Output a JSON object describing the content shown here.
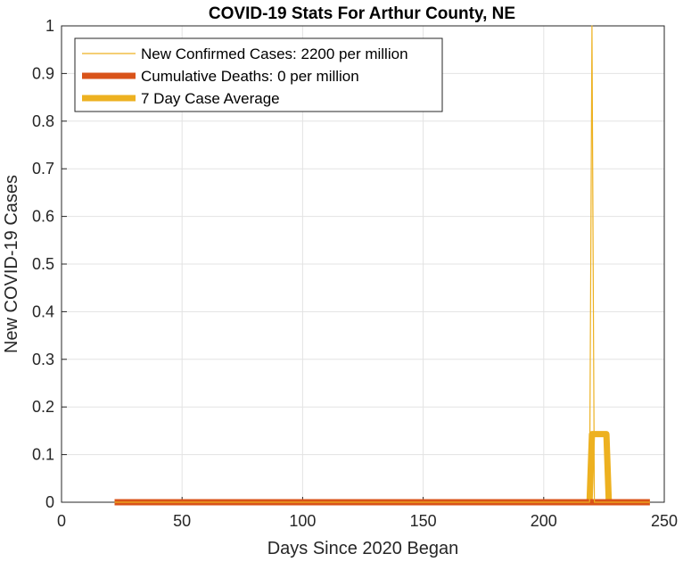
{
  "chart_data": {
    "type": "line",
    "title": "COVID-19 Stats For Arthur County, NE",
    "xlabel": "Days Since 2020 Began",
    "ylabel": "New COVID-19 Cases",
    "xlim": [
      0,
      250
    ],
    "ylim": [
      0,
      1
    ],
    "xticks": [
      "0",
      "50",
      "100",
      "150",
      "200",
      "250"
    ],
    "yticks": [
      "0",
      "0.1",
      "0.2",
      "0.3",
      "0.4",
      "0.5",
      "0.6",
      "0.7",
      "0.8",
      "0.9",
      "1"
    ],
    "grid": true,
    "legend_position": "top-left",
    "series": [
      {
        "name": "New Confirmed Cases: 2200 per million",
        "color": "#EDB120",
        "style": "thin",
        "x": [
          22,
          219,
          220,
          221,
          244
        ],
        "y": [
          0,
          0,
          1,
          0,
          0
        ]
      },
      {
        "name": "Cumulative Deaths: 0 per million",
        "color": "#D95319",
        "style": "thick",
        "x": [
          22,
          244
        ],
        "y": [
          0,
          0
        ]
      },
      {
        "name": "7 Day Case Average",
        "color": "#EDB120",
        "style": "thick",
        "x": [
          22,
          219,
          220,
          226,
          227,
          244
        ],
        "y": [
          0,
          0,
          0.143,
          0.143,
          0,
          0
        ]
      }
    ]
  }
}
